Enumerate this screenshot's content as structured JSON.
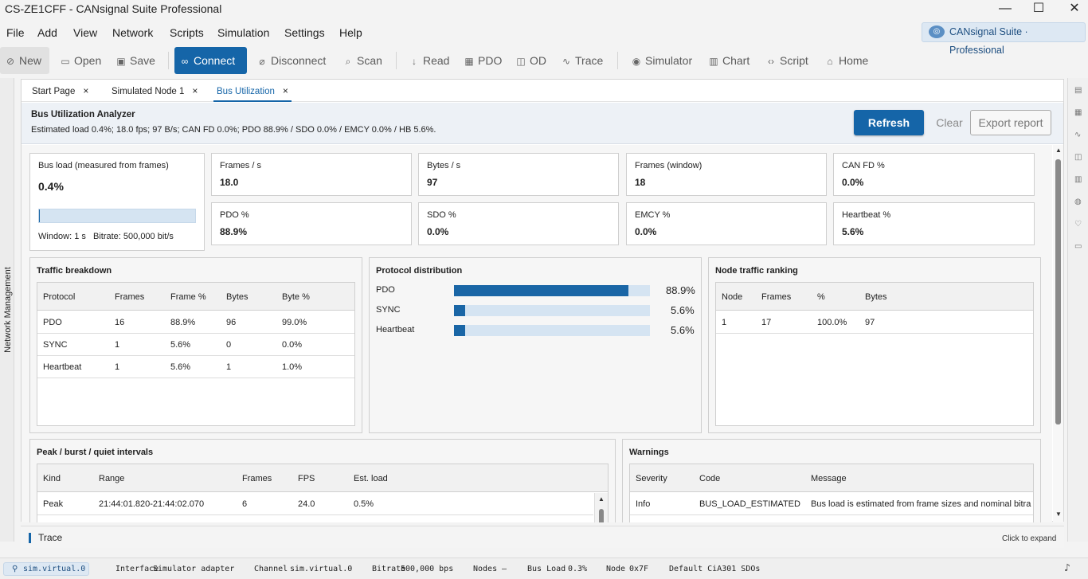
{
  "window": {
    "title": "CS-ZE1CFF - CANsignal Suite Professional",
    "minimize": "—",
    "maximize": "☐",
    "close": "✕"
  },
  "menu": [
    "File",
    "Add",
    "View",
    "Network",
    "Scripts",
    "Simulation",
    "Settings",
    "Help"
  ],
  "brand": {
    "label": "CANsignal Suite · Professional"
  },
  "toolbar": {
    "new": "New",
    "open": "Open",
    "save": "Save",
    "connect": "Connect",
    "disconnect": "Disconnect",
    "scan": "Scan",
    "read": "Read",
    "pdo": "PDO",
    "od": "OD",
    "trace": "Trace",
    "simulator": "Simulator",
    "chart": "Chart",
    "script": "Script",
    "home": "Home"
  },
  "left_rail": {
    "label": "Network Management"
  },
  "tabs": [
    {
      "label": "Start Page",
      "close": "×"
    },
    {
      "label": "Simulated Node 1",
      "close": "×"
    },
    {
      "label": "Bus Utilization",
      "close": "×"
    }
  ],
  "header": {
    "title": "Bus Utilization Analyzer",
    "summary": "Estimated load 0.4%; 18.0 fps; 97 B/s; CAN FD 0.0%; PDO 88.9% / SDO 0.0% / EMCY 0.0% / HB 5.6%.",
    "refresh": "Refresh",
    "clear": "Clear",
    "export": "Export report"
  },
  "busload": {
    "label": "Bus load (measured from frames)",
    "value": "0.4%",
    "level": 0.004,
    "window_label": "Window: 1 s",
    "bitrate_label": "Bitrate: 500,000 bit/s"
  },
  "metrics": [
    {
      "label": "Frames / s",
      "value": "18.0"
    },
    {
      "label": "Bytes / s",
      "value": "97"
    },
    {
      "label": "Frames (window)",
      "value": "18"
    },
    {
      "label": "CAN FD %",
      "value": "0.0%"
    },
    {
      "label": "PDO %",
      "value": "88.9%"
    },
    {
      "label": "SDO %",
      "value": "0.0%"
    },
    {
      "label": "EMCY %",
      "value": "0.0%"
    },
    {
      "label": "Heartbeat %",
      "value": "5.6%"
    }
  ],
  "traffic": {
    "title": "Traffic breakdown",
    "columns": [
      "Protocol",
      "Frames",
      "Frame %",
      "Bytes",
      "Byte %"
    ],
    "rows": [
      [
        "PDO",
        "16",
        "88.9%",
        "96",
        "99.0%"
      ],
      [
        "SYNC",
        "1",
        "5.6%",
        "0",
        "0.0%"
      ],
      [
        "Heartbeat",
        "1",
        "5.6%",
        "1",
        "1.0%"
      ]
    ]
  },
  "distribution": {
    "title": "Protocol distribution",
    "items": [
      {
        "name": "PDO",
        "pct": "88.9%",
        "value": 88.9
      },
      {
        "name": "SYNC",
        "pct": "5.6%",
        "value": 5.6
      },
      {
        "name": "Heartbeat",
        "pct": "5.6%",
        "value": 5.6
      }
    ]
  },
  "ranking": {
    "title": "Node traffic ranking",
    "columns": [
      "Node",
      "Frames",
      "%",
      "Bytes"
    ],
    "rows": [
      [
        "1",
        "17",
        "100.0%",
        "97"
      ]
    ]
  },
  "intervals": {
    "title": "Peak / burst / quiet intervals",
    "columns": [
      "Kind",
      "Range",
      "Frames",
      "FPS",
      "Est. load"
    ],
    "rows": [
      [
        "Peak",
        "21:44:01.820-21:44:02.070",
        "6",
        "24.0",
        "0.5%"
      ]
    ]
  },
  "warnings": {
    "title": "Warnings",
    "columns": [
      "Severity",
      "Code",
      "Message"
    ],
    "rows": [
      [
        "Info",
        "BUS_LOAD_ESTIMATED",
        "Bus load is estimated from frame sizes and nominal bitra"
      ]
    ]
  },
  "trace": {
    "label": "Trace",
    "hint": "Click to expand"
  },
  "status": {
    "channel_badge": "sim.virtual.0",
    "interface_label": "Interface",
    "interface_value": "Simulator adapter",
    "channel_label": "Channel",
    "channel_value": "sim.virtual.0",
    "bitrate_label": "Bitrate",
    "bitrate_value": "500,000 bps",
    "nodes_label": "Nodes",
    "nodes_value": "–",
    "busload_label": "Bus Load",
    "busload_value": "0.3%",
    "node_label": "Node",
    "node_value": "0x7F",
    "sdo_label": "Default CiA301 SDOs"
  },
  "colors": {
    "accent": "#1565a8",
    "bar_track": "#d5e4f2"
  }
}
